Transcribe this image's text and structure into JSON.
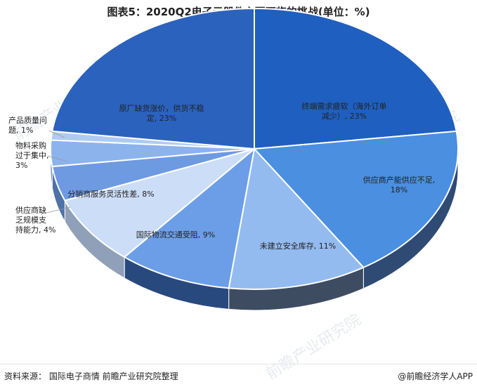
{
  "title": "图表5：2020Q2电子元器件主要面临的挑战(单位：%)",
  "footer": {
    "source": "资料来源： 国际电子商情 前瞻产业研究院整理",
    "brand": "@前瞻经济学人APP"
  },
  "watermark": "前瞻产业研究院",
  "colors": {
    "top": [
      "#1F5FBF",
      "#4A8FE0",
      "#93BBF0",
      "#6C9EE8",
      "#CCDDF8",
      "#6E9AE2",
      "#8DB3EC",
      "#AFCBF2",
      "#2A62BE",
      "#154BA8",
      "#1C55B3"
    ],
    "side": [
      "#28497E",
      "#2F4B73",
      "#3E4C62",
      "#28497E",
      "#8FA0B8",
      "#4E71A8",
      "#5B7EB4",
      "#6D8DC0",
      "#1B3F86",
      "#133A82",
      "#1A4490"
    ]
  },
  "chart_data": {
    "type": "pie",
    "title": "图表5：2020Q2电子元器件主要面临的挑战(单位：%)",
    "categories": [
      "终端需求疲软（海外订单减少）",
      "供应商产能供应不足",
      "未建立安全库存",
      "国际物流交通受阻",
      "分销商服务灵活性差",
      "供应商缺乏规模支持能力",
      "物料采购过于集中",
      "产品质量问题",
      "原厂缺货涨价，供货不稳定"
    ],
    "values": [
      23,
      18,
      11,
      9,
      8,
      4,
      3,
      1,
      23
    ],
    "labels": [
      [
        "终端需求疲软（海外订单",
        "减少）, 23%"
      ],
      [
        "供应商产能供应不足,",
        "18%"
      ],
      [
        "未建立安全库存, 11%"
      ],
      [
        "国际物流交通受阻, 9%"
      ],
      [
        "分销商服务灵活性差, 8%"
      ],
      [
        "供应商缺",
        "乏规模支",
        "持能力, 4%"
      ],
      [
        "物料采购",
        "过于集中,",
        "3%"
      ],
      [
        "产品质量问",
        "题, 1%"
      ],
      [
        "原厂缺货涨价，供货不稳",
        "定, 23%"
      ]
    ]
  }
}
